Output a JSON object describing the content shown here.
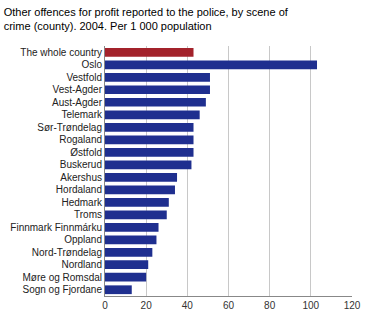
{
  "chart_data": {
    "type": "bar",
    "orientation": "horizontal",
    "title": "Other offences for profit reported to the police, by scene of\ncrime (county). 2004. Per 1 000 population",
    "categories": [
      "The whole country",
      "Oslo",
      "Vestfold",
      "Vest-Agder",
      "Aust-Agder",
      "Telemark",
      "Sør-Trøndelag",
      "Rogaland",
      "Østfold",
      "Buskerud",
      "Akershus",
      "Hordaland",
      "Hedmark",
      "Troms",
      "Finnmark Finnmárku",
      "Oppland",
      "Nord-Trøndelag",
      "Nordland",
      "Møre og Romsdal",
      "Sogn og Fjordane"
    ],
    "values": [
      43,
      103,
      51,
      51,
      49,
      46,
      43,
      43,
      43,
      42,
      35,
      34,
      31,
      30,
      26,
      25,
      23,
      21,
      20,
      13
    ],
    "colors": [
      "#a3222b",
      "#1f2f8f",
      "#1f2f8f",
      "#1f2f8f",
      "#1f2f8f",
      "#1f2f8f",
      "#1f2f8f",
      "#1f2f8f",
      "#1f2f8f",
      "#1f2f8f",
      "#1f2f8f",
      "#1f2f8f",
      "#1f2f8f",
      "#1f2f8f",
      "#1f2f8f",
      "#1f2f8f",
      "#1f2f8f",
      "#1f2f8f",
      "#1f2f8f",
      "#1f2f8f"
    ],
    "xlim": [
      0,
      120
    ],
    "xticks": [
      0,
      20,
      40,
      60,
      80,
      100,
      120
    ],
    "grid": true
  }
}
